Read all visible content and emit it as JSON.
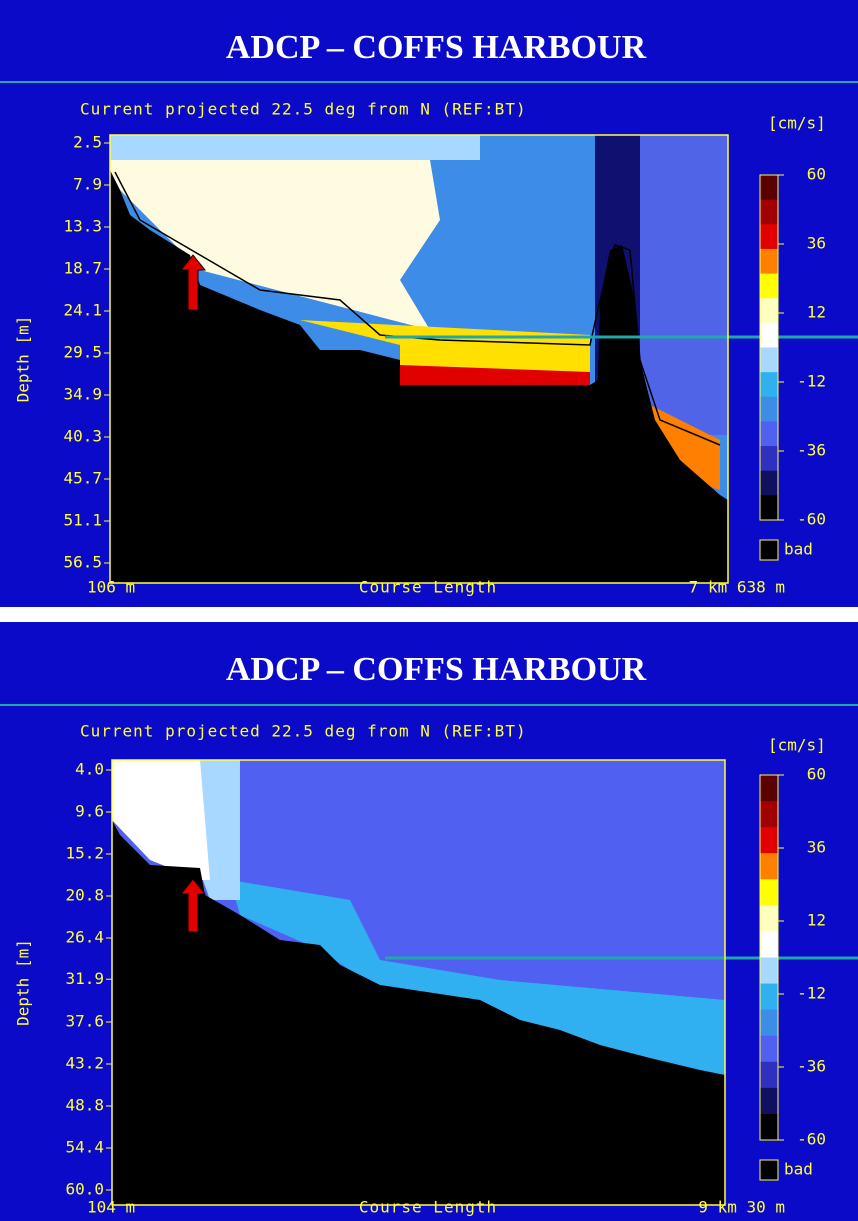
{
  "chart_data": [
    {
      "type": "heatmap",
      "title": "ADCP – COFFS HARBOUR",
      "subtitle": "Current projected 22.5 deg from N (REF:BT)",
      "ylabel": "Depth [m]",
      "xlabel": "Course Length",
      "xlabels": [
        "106 m",
        "7 km 638 m"
      ],
      "ylim": [
        2.5,
        56.5
      ],
      "yticks": [
        2.5,
        7.9,
        13.3,
        18.7,
        24.1,
        29.5,
        34.9,
        40.3,
        45.7,
        51.1,
        56.5
      ],
      "colorbar_label": "[cm/s]",
      "clim": [
        -60,
        60
      ],
      "colorbar_ticks": [
        60,
        36,
        12,
        -12,
        -36,
        -60
      ],
      "colors": [
        "#5a0000",
        "#a00000",
        "#e00000",
        "#ff8000",
        "#ffff00",
        "#ffffc0",
        "#ffffff",
        "#a8d8ff",
        "#30b0f0",
        "#3c8ce8",
        "#5060f0",
        "#3030c0",
        "#101060",
        "#000000"
      ],
      "bad_label": "bad"
    },
    {
      "type": "heatmap",
      "title": "ADCP – COFFS HARBOUR",
      "subtitle": "Current projected 22.5 deg from N (REF:BT)",
      "ylabel": "Depth [m]",
      "xlabel": "Course Length",
      "xlabels": [
        "104 m",
        "9 km 30 m"
      ],
      "ylim": [
        4,
        60
      ],
      "yticks": [
        {
          "value": 4,
          "label": "4.0"
        },
        9.6,
        15.2,
        20.8,
        26.4,
        31.9,
        37.6,
        43.2,
        48.8,
        54.4,
        {
          "value": 60,
          "label": "60.0"
        }
      ],
      "colorbar_label": "[cm/s]",
      "clim": [
        -60,
        60
      ],
      "colorbar_ticks": [
        60,
        36,
        12,
        -12,
        -36,
        -60
      ],
      "colors": [
        "#5a0000",
        "#a00000",
        "#e00000",
        "#ff8000",
        "#ffff00",
        "#ffffc0",
        "#ffffff",
        "#a8d8ff",
        "#30b0f0",
        "#3c8ce8",
        "#5060f0",
        "#3030c0",
        "#101060",
        "#000000"
      ],
      "bad_label": "bad"
    }
  ]
}
